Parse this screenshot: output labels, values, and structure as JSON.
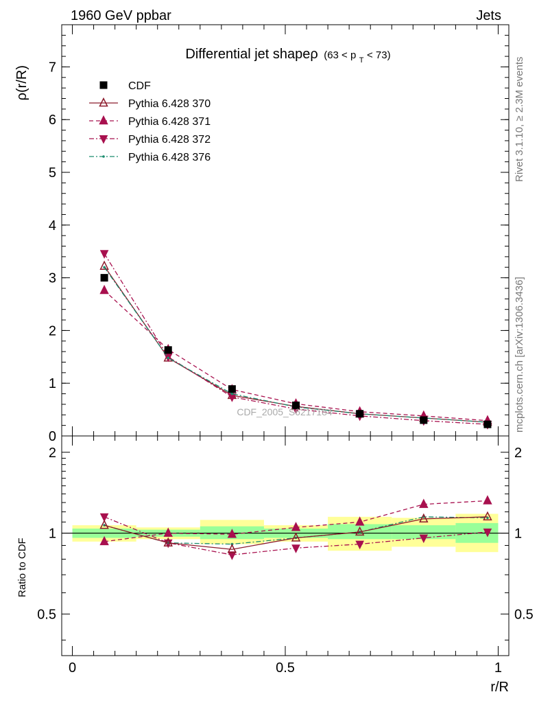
{
  "header": {
    "left": "1960 GeV ppbar",
    "right": "Jets"
  },
  "side_labels": {
    "rivet": "Rivet 3.1.10, ≥ 2.3M events",
    "mcplots": "mcplots.cern.ch [arXiv:1306.3436]"
  },
  "watermark": "CDF_2005_S6217184",
  "chart_data": [
    {
      "type": "scatter",
      "title_main": "Differential jet shapeρ",
      "title_sub_pre": "(63 < p",
      "title_sub_idx": "T",
      "title_sub_post": " < 73)",
      "ylabel": "ρ(r/R)",
      "ylim": [
        0,
        7.8
      ],
      "yticks": [
        0,
        1,
        2,
        3,
        4,
        5,
        6,
        7
      ],
      "ytick_labels": [
        "0",
        "1",
        "2",
        "3",
        "4",
        "5",
        "6",
        "7"
      ],
      "xlim": [
        -0.025,
        1.025
      ],
      "x": [
        0.075,
        0.225,
        0.375,
        0.525,
        0.675,
        0.825,
        0.975
      ],
      "series": [
        {
          "name": "CDF",
          "values": [
            3.0,
            1.63,
            0.89,
            0.58,
            0.42,
            0.3,
            0.22
          ],
          "color": "#000000",
          "marker": "square",
          "dash": "none"
        },
        {
          "name": "Pythia 6.428 370",
          "values": [
            3.22,
            1.48,
            0.77,
            0.56,
            0.42,
            0.34,
            0.26
          ],
          "color": "#8b1a2b",
          "marker": "triangle-up-open",
          "dash": "solid"
        },
        {
          "name": "Pythia 6.428 371",
          "values": [
            2.76,
            1.64,
            0.88,
            0.61,
            0.46,
            0.38,
            0.29
          ],
          "color": "#a8104e",
          "marker": "triangle-up",
          "dash": "dashed"
        },
        {
          "name": "Pythia 6.428 372",
          "values": [
            3.46,
            1.5,
            0.74,
            0.51,
            0.38,
            0.29,
            0.22
          ],
          "color": "#a8104e",
          "marker": "triangle-down",
          "dash": "dashdot"
        },
        {
          "name": "Pythia 6.428 376",
          "values": [
            3.2,
            1.48,
            0.8,
            0.55,
            0.42,
            0.34,
            0.26
          ],
          "color": "#1a8c6e",
          "marker": "dot",
          "dash": "dashdot"
        }
      ]
    },
    {
      "type": "scatter",
      "ylabel": "Ratio to CDF",
      "xlabel": "r/R",
      "ylim": [
        0.35,
        2.3
      ],
      "yticks": [
        0.5,
        1,
        2
      ],
      "ytick_labels": [
        "0.5",
        "1",
        "2"
      ],
      "xlim": [
        -0.025,
        1.025
      ],
      "xticks": [
        0,
        0.5,
        1
      ],
      "xtick_labels": [
        "0",
        "0.5",
        "1"
      ],
      "x": [
        0.075,
        0.225,
        0.375,
        0.525,
        0.675,
        0.825,
        0.975
      ],
      "x_edges": [
        0.0,
        0.15,
        0.3,
        0.45,
        0.6,
        0.75,
        0.9,
        1.05
      ],
      "band_inner": [
        [
          0.96,
          1.04
        ],
        [
          0.97,
          1.03
        ],
        [
          0.95,
          1.06
        ],
        [
          0.96,
          1.04
        ],
        [
          0.95,
          1.08
        ],
        [
          0.95,
          1.07
        ],
        [
          0.92,
          1.09
        ]
      ],
      "band_outer": [
        [
          0.93,
          1.07
        ],
        [
          0.95,
          1.05
        ],
        [
          0.91,
          1.12
        ],
        [
          0.93,
          1.07
        ],
        [
          0.86,
          1.15
        ],
        [
          0.89,
          1.14
        ],
        [
          0.85,
          1.18
        ]
      ],
      "series": [
        {
          "name": "Pythia 6.428 370",
          "values": [
            1.07,
            0.92,
            0.87,
            0.96,
            1.01,
            1.13,
            1.15
          ],
          "color": "#8b1a2b",
          "marker": "triangle-up-open",
          "dash": "solid"
        },
        {
          "name": "Pythia 6.428 371",
          "values": [
            0.93,
            1.0,
            0.99,
            1.05,
            1.1,
            1.28,
            1.32
          ],
          "color": "#a8104e",
          "marker": "triangle-up",
          "dash": "dashed"
        },
        {
          "name": "Pythia 6.428 372",
          "values": [
            1.15,
            0.92,
            0.83,
            0.88,
            0.91,
            0.96,
            1.01
          ],
          "color": "#a8104e",
          "marker": "triangle-down",
          "dash": "dashdot"
        },
        {
          "name": "Pythia 6.428 376",
          "values": [
            1.07,
            0.92,
            0.91,
            0.96,
            1.01,
            1.15,
            1.14
          ],
          "color": "#1a8c6e",
          "marker": "dot",
          "dash": "dashdot"
        }
      ]
    }
  ]
}
